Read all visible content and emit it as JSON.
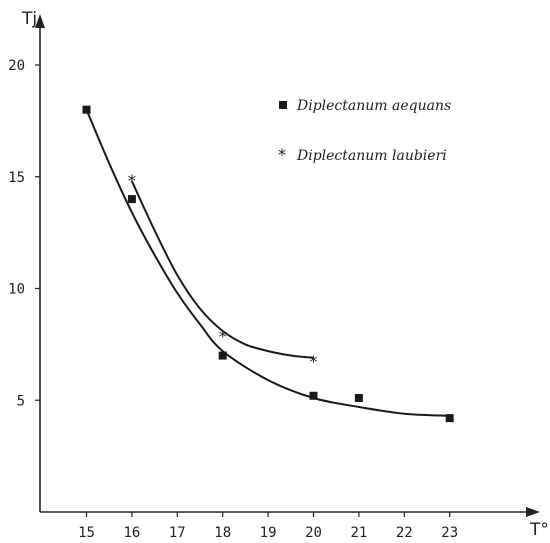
{
  "chart_data": {
    "type": "scatter",
    "title": "",
    "xlabel": "T°",
    "ylabel": "Tj",
    "x_ticks": [
      {
        "value": 15,
        "label": "15"
      },
      {
        "value": 16,
        "label": "16"
      },
      {
        "value": 17,
        "label": "17"
      },
      {
        "value": 18,
        "label": "18"
      },
      {
        "value": 19,
        "label": "19"
      },
      {
        "value": 20,
        "label": "20"
      },
      {
        "value": 21,
        "label": "21"
      },
      {
        "value": 22,
        "label": "22"
      },
      {
        "value": 23,
        "label": "23"
      }
    ],
    "y_ticks": [
      {
        "value": 5,
        "label": "5"
      },
      {
        "value": 10,
        "label": "10"
      },
      {
        "value": 15,
        "label": "15"
      },
      {
        "value": 20,
        "label": "20"
      }
    ],
    "grid": false,
    "legend_position": "top-right",
    "series": [
      {
        "name": "Diplectanum aequans",
        "marker": "square",
        "points": [
          {
            "x": 15,
            "y": 18
          },
          {
            "x": 16,
            "y": 14
          },
          {
            "x": 18,
            "y": 7
          },
          {
            "x": 20,
            "y": 5.2
          },
          {
            "x": 21,
            "y": 5.1
          },
          {
            "x": 23,
            "y": 4.2
          }
        ],
        "curve": [
          [
            15,
            18
          ],
          [
            15.5,
            15.6
          ],
          [
            16,
            13.4
          ],
          [
            16.5,
            11.5
          ],
          [
            17,
            9.8
          ],
          [
            17.5,
            8.4
          ],
          [
            18,
            7.2
          ],
          [
            19,
            5.9
          ],
          [
            20,
            5.1
          ],
          [
            21,
            4.7
          ],
          [
            22,
            4.4
          ],
          [
            23,
            4.3
          ]
        ]
      },
      {
        "name": "Diplectanum laubieri",
        "marker": "star",
        "points": [
          {
            "x": 16,
            "y": 15
          },
          {
            "x": 18,
            "y": 8
          },
          {
            "x": 20,
            "y": 6.9
          }
        ],
        "curve": [
          [
            16,
            14.8
          ],
          [
            16.5,
            12.6
          ],
          [
            17,
            10.6
          ],
          [
            17.5,
            9.1
          ],
          [
            18,
            8.1
          ],
          [
            18.5,
            7.5
          ],
          [
            19,
            7.2
          ],
          [
            19.5,
            7.0
          ],
          [
            20,
            6.9
          ]
        ]
      }
    ]
  }
}
